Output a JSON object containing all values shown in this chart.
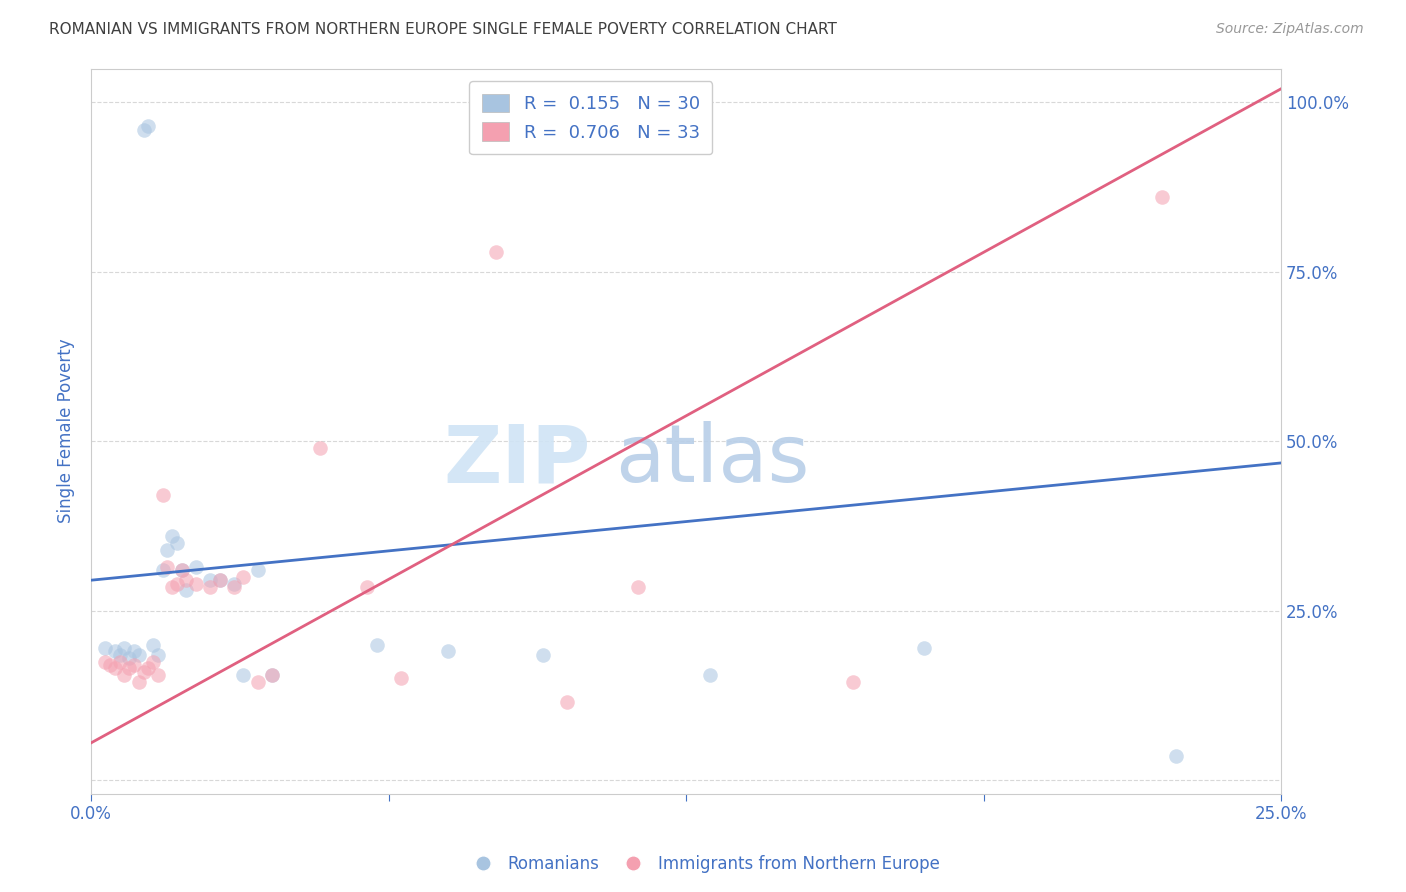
{
  "title": "ROMANIAN VS IMMIGRANTS FROM NORTHERN EUROPE SINGLE FEMALE POVERTY CORRELATION CHART",
  "source": "Source: ZipAtlas.com",
  "ylabel": "Single Female Poverty",
  "yticks": [
    0.0,
    0.25,
    0.5,
    0.75,
    1.0
  ],
  "ytick_labels_right": [
    "",
    "25.0%",
    "50.0%",
    "75.0%",
    "100.0%"
  ],
  "xticks": [
    0.0,
    0.0625,
    0.125,
    0.1875,
    0.25
  ],
  "xtick_labels": [
    "0.0%",
    "",
    "",
    "",
    "25.0%"
  ],
  "xlim": [
    0.0,
    0.25
  ],
  "ylim": [
    -0.02,
    1.05
  ],
  "blue_R": 0.155,
  "blue_N": 30,
  "pink_R": 0.706,
  "pink_N": 33,
  "blue_color": "#a8c4e0",
  "pink_color": "#f4a0b0",
  "line_blue_color": "#4472c4",
  "line_pink_color": "#e06080",
  "legend_label_blue": "Romanians",
  "legend_label_pink": "Immigrants from Northern Europe",
  "watermark_zip": "ZIP",
  "watermark_atlas": "atlas",
  "title_color": "#404040",
  "axis_label_color": "#4472c4",
  "blue_x": [
    0.003,
    0.005,
    0.006,
    0.007,
    0.008,
    0.009,
    0.01,
    0.011,
    0.012,
    0.013,
    0.014,
    0.015,
    0.016,
    0.017,
    0.018,
    0.019,
    0.02,
    0.022,
    0.025,
    0.027,
    0.03,
    0.032,
    0.035,
    0.038,
    0.06,
    0.075,
    0.095,
    0.13,
    0.175,
    0.228
  ],
  "blue_y": [
    0.195,
    0.19,
    0.185,
    0.195,
    0.18,
    0.19,
    0.185,
    0.96,
    0.965,
    0.2,
    0.185,
    0.31,
    0.34,
    0.36,
    0.35,
    0.31,
    0.28,
    0.315,
    0.295,
    0.295,
    0.29,
    0.155,
    0.31,
    0.155,
    0.2,
    0.19,
    0.185,
    0.155,
    0.195,
    0.035
  ],
  "pink_x": [
    0.003,
    0.004,
    0.005,
    0.006,
    0.007,
    0.008,
    0.009,
    0.01,
    0.011,
    0.012,
    0.013,
    0.014,
    0.015,
    0.016,
    0.017,
    0.018,
    0.019,
    0.02,
    0.022,
    0.025,
    0.027,
    0.03,
    0.032,
    0.035,
    0.038,
    0.048,
    0.058,
    0.065,
    0.085,
    0.1,
    0.115,
    0.16,
    0.225
  ],
  "pink_y": [
    0.175,
    0.17,
    0.165,
    0.175,
    0.155,
    0.165,
    0.17,
    0.145,
    0.16,
    0.165,
    0.175,
    0.155,
    0.42,
    0.315,
    0.285,
    0.29,
    0.31,
    0.295,
    0.29,
    0.285,
    0.295,
    0.285,
    0.3,
    0.145,
    0.155,
    0.49,
    0.285,
    0.15,
    0.78,
    0.115,
    0.285,
    0.145,
    0.86
  ],
  "blue_line_x0": 0.0,
  "blue_line_y0": 0.295,
  "blue_line_x1": 0.25,
  "blue_line_y1": 0.468,
  "pink_line_x0": 0.0,
  "pink_line_y0": 0.055,
  "pink_line_x1": 0.25,
  "pink_line_y1": 1.02,
  "marker_size": 110,
  "marker_alpha": 0.55,
  "grid_color": "#d8d8d8",
  "background_color": "#ffffff"
}
